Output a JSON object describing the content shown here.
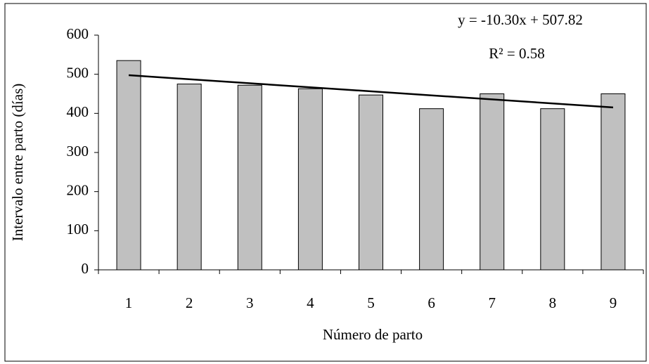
{
  "chart_data": {
    "type": "bar",
    "categories": [
      "1",
      "2",
      "3",
      "4",
      "5",
      "6",
      "7",
      "8",
      "9"
    ],
    "values": [
      535,
      475,
      472,
      463,
      447,
      412,
      450,
      412,
      450
    ],
    "color": "#c0c0c0",
    "ylim": [
      0,
      600
    ],
    "yticks": [
      0,
      100,
      200,
      300,
      400,
      500,
      600
    ],
    "grid": false,
    "xlabel": "Número de parto",
    "ylabel": "Intervalo entre parto (días)",
    "trendline": {
      "slope": -10.3,
      "intercept": 507.82,
      "equation": "y = -10.30x + 507.82",
      "r_squared": "R² = 0.58"
    }
  }
}
